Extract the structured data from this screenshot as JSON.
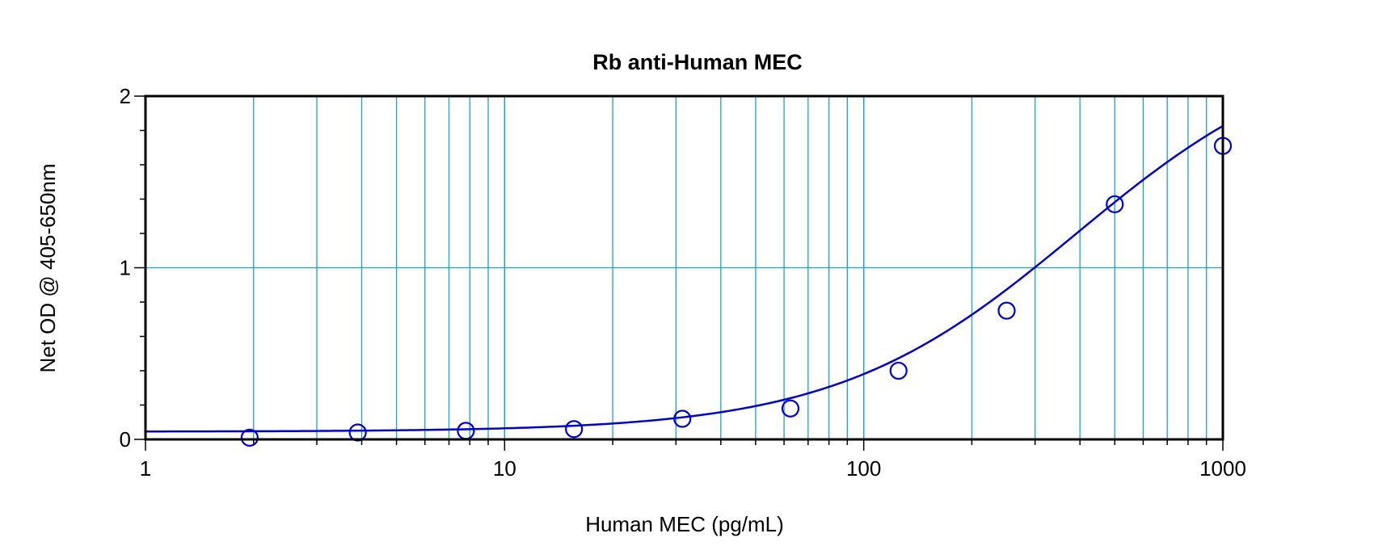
{
  "chart_data": {
    "type": "scatter",
    "title": "Rb anti-Human MEC",
    "xlabel": "Human MEC (pg/mL)",
    "ylabel": "Net OD @ 405-650nm",
    "xscale": "log",
    "xlim": [
      1,
      1000
    ],
    "ylim": [
      0,
      2
    ],
    "x_ticks": [
      {
        "value": 1,
        "label": "1"
      },
      {
        "value": 10,
        "label": "10"
      },
      {
        "value": 100,
        "label": "100"
      },
      {
        "value": 1000,
        "label": "1000"
      }
    ],
    "y_ticks": [
      {
        "value": 0,
        "label": "0"
      },
      {
        "value": 1,
        "label": "1"
      },
      {
        "value": 2,
        "label": "2"
      }
    ],
    "grid": true,
    "colors": {
      "series": "#0000dd",
      "grid": "#1aa0d8"
    },
    "series": [
      {
        "marker": "open-circle",
        "x": [
          1.95,
          3.9,
          7.8,
          15.6,
          31.25,
          62.5,
          125,
          250,
          500,
          1000
        ],
        "y": [
          0.01,
          0.04,
          0.05,
          0.06,
          0.12,
          0.18,
          0.4,
          0.75,
          1.37,
          1.71
        ]
      }
    ],
    "fit_curve": {
      "type": "line",
      "model": "4PL",
      "bottom": 0.045,
      "top": 2.35,
      "ec50": 390,
      "hill": 1.3
    }
  }
}
